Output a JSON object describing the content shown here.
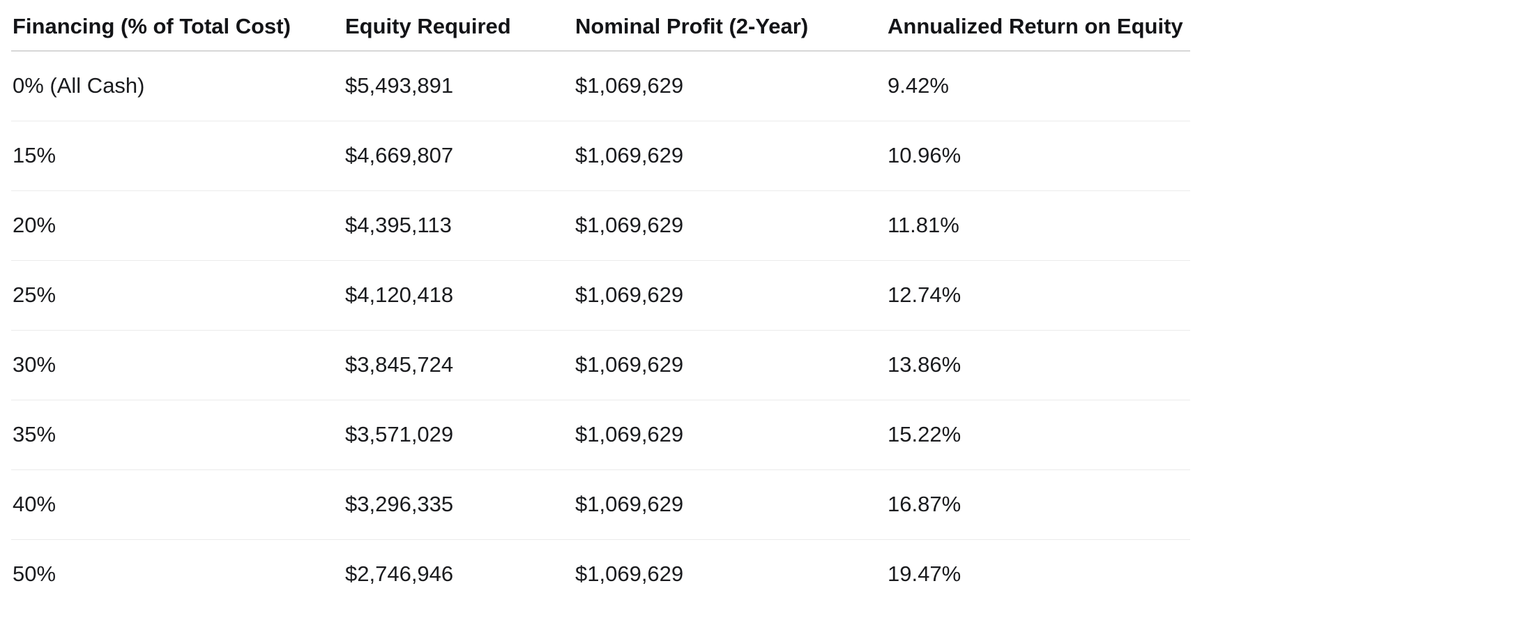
{
  "table": {
    "name": "financing-scenarios-table",
    "columns": [
      "Financing (% of Total Cost)",
      "Equity Required",
      "Nominal Profit (2-Year)",
      "Annualized Return on Equity"
    ],
    "rows": [
      {
        "financing": "0% (All Cash)",
        "equity_required": "$5,493,891",
        "nominal_profit": "$1,069,629",
        "annualized_return": "9.42%"
      },
      {
        "financing": "15%",
        "equity_required": "$4,669,807",
        "nominal_profit": "$1,069,629",
        "annualized_return": "10.96%"
      },
      {
        "financing": "20%",
        "equity_required": "$4,395,113",
        "nominal_profit": "$1,069,629",
        "annualized_return": "11.81%"
      },
      {
        "financing": "25%",
        "equity_required": "$4,120,418",
        "nominal_profit": "$1,069,629",
        "annualized_return": "12.74%"
      },
      {
        "financing": "30%",
        "equity_required": "$3,845,724",
        "nominal_profit": "$1,069,629",
        "annualized_return": "13.86%"
      },
      {
        "financing": "35%",
        "equity_required": "$3,571,029",
        "nominal_profit": "$1,069,629",
        "annualized_return": "15.22%"
      },
      {
        "financing": "40%",
        "equity_required": "$3,296,335",
        "nominal_profit": "$1,069,629",
        "annualized_return": "16.87%"
      },
      {
        "financing": "50%",
        "equity_required": "$2,746,946",
        "nominal_profit": "$1,069,629",
        "annualized_return": "19.47%"
      }
    ]
  },
  "colors": {
    "background": "#ffffff",
    "header_text": "#131417",
    "body_text": "#1a1b1e",
    "header_rule": "#d7d7d7",
    "row_rule": "#ebebeb"
  }
}
